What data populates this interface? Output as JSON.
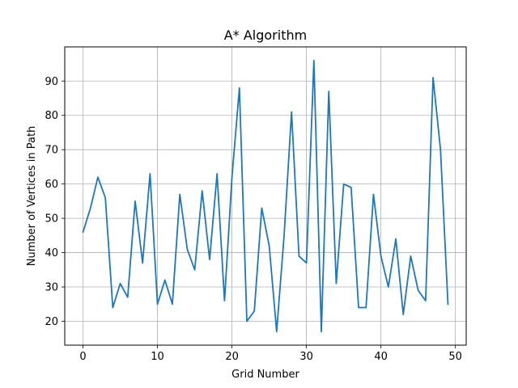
{
  "chart_data": {
    "type": "line",
    "title": "A* Algorithm",
    "xlabel": "Grid Number",
    "ylabel": "Number of Vertices in Path",
    "xlim": [
      -2.45,
      51.45
    ],
    "ylim": [
      13.05,
      99.95
    ],
    "xticks": [
      0,
      10,
      20,
      30,
      40,
      50
    ],
    "yticks": [
      20,
      30,
      40,
      50,
      60,
      70,
      80,
      90
    ],
    "grid": true,
    "line_color": "#1f77b4",
    "series": [
      {
        "x": [
          0,
          1,
          2,
          3,
          4,
          5,
          6,
          7,
          8,
          9,
          10,
          11,
          12,
          13,
          14,
          15,
          16,
          17,
          18,
          19,
          20,
          21,
          22,
          23,
          24,
          25,
          26,
          27,
          28,
          29,
          30,
          31,
          32,
          33,
          34,
          35,
          36,
          37,
          38,
          39,
          40,
          41,
          42,
          43,
          44,
          45,
          46,
          47,
          48,
          49
        ],
        "values": [
          46,
          53,
          62,
          56,
          24,
          31,
          27,
          55,
          37,
          63,
          25,
          32,
          25,
          57,
          41,
          35,
          58,
          38,
          63,
          26,
          62,
          88,
          20,
          23,
          53,
          42,
          17,
          45,
          81,
          39,
          37,
          96,
          17,
          87,
          31,
          60,
          59,
          24,
          24,
          57,
          39,
          30,
          44,
          22,
          39,
          29,
          26,
          91,
          70,
          25
        ]
      }
    ]
  }
}
